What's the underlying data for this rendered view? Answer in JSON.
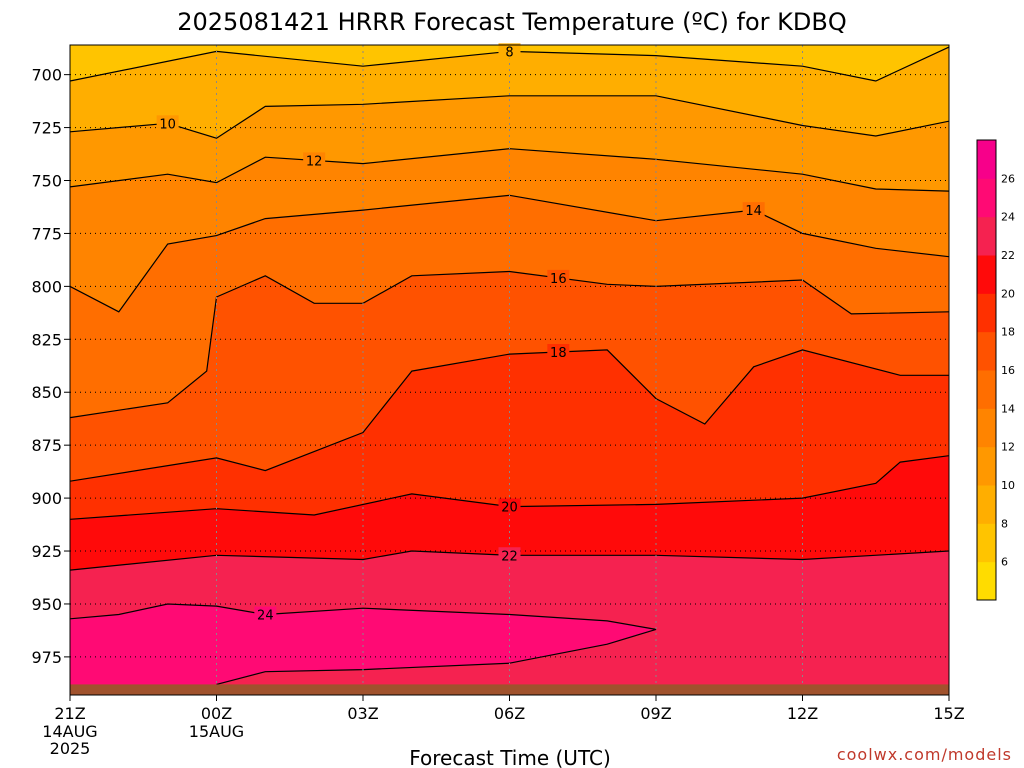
{
  "chart_data": {
    "type": "heatmap",
    "title": "2025081421 HRRR Forecast Temperature (ºC) for KDBQ",
    "xlabel": "Forecast Time (UTC)",
    "ylabel": "",
    "x_range_hours": [
      0,
      18
    ],
    "y_range_hPa": [
      686,
      993
    ],
    "x_ticks": [
      {
        "hour": 0,
        "label": "21Z",
        "date": [
          "14AUG",
          "2025"
        ]
      },
      {
        "hour": 3,
        "label": "00Z",
        "date": [
          "15AUG"
        ]
      },
      {
        "hour": 6,
        "label": "03Z",
        "date": []
      },
      {
        "hour": 9,
        "label": "06Z",
        "date": []
      },
      {
        "hour": 12,
        "label": "09Z",
        "date": []
      },
      {
        "hour": 15,
        "label": "12Z",
        "date": []
      },
      {
        "hour": 18,
        "label": "15Z",
        "date": []
      }
    ],
    "y_ticks": [
      {
        "p": 700,
        "label": "700"
      },
      {
        "p": 725,
        "label": "725"
      },
      {
        "p": 750,
        "label": "750"
      },
      {
        "p": 775,
        "label": "775"
      },
      {
        "p": 800,
        "label": "800"
      },
      {
        "p": 825,
        "label": "825"
      },
      {
        "p": 850,
        "label": "850"
      },
      {
        "p": 875,
        "label": "875"
      },
      {
        "p": 900,
        "label": "900"
      },
      {
        "p": 925,
        "label": "925"
      },
      {
        "p": 950,
        "label": "950"
      },
      {
        "p": 975,
        "label": "975"
      }
    ],
    "grid": true,
    "surface_color": "#a0522d",
    "surface_pressure_hPa": 988,
    "colorbar": {
      "levels": [
        4,
        6,
        8,
        10,
        12,
        14,
        16,
        18,
        20,
        22,
        24,
        26,
        28
      ],
      "colors": [
        "#ffdc00",
        "#ffc400",
        "#ffae00",
        "#ff9800",
        "#ff8400",
        "#ff6e00",
        "#ff5200",
        "#ff3000",
        "#ff0a0a",
        "#f52250",
        "#ff0a74",
        "#f7008a"
      ],
      "tick_labels": [
        "6",
        "8",
        "10",
        "12",
        "14",
        "16",
        "18",
        "20",
        "22",
        "24",
        "26"
      ]
    },
    "isotherms": [
      {
        "value": 8,
        "label": "8",
        "label_at_hour": 9,
        "points_hPa": [
          [
            0,
            703
          ],
          [
            3,
            689
          ],
          [
            6,
            696
          ],
          [
            9,
            689
          ],
          [
            12,
            691
          ],
          [
            15,
            696
          ],
          [
            16.5,
            703
          ],
          [
            18,
            687
          ]
        ]
      },
      {
        "value": 10,
        "label": "10",
        "label_at_hour": 2,
        "points_hPa": [
          [
            0,
            727
          ],
          [
            2,
            723
          ],
          [
            3,
            730
          ],
          [
            4,
            715
          ],
          [
            6,
            714
          ],
          [
            9,
            710
          ],
          [
            12,
            710
          ],
          [
            15,
            724
          ],
          [
            16.5,
            729
          ],
          [
            18,
            722
          ]
        ]
      },
      {
        "value": 12,
        "label": "12",
        "label_at_hour": 5,
        "points_hPa": [
          [
            0,
            753
          ],
          [
            2,
            747
          ],
          [
            3,
            751
          ],
          [
            4,
            739
          ],
          [
            6,
            742
          ],
          [
            9,
            735
          ],
          [
            12,
            740
          ],
          [
            15,
            747
          ],
          [
            16.5,
            754
          ],
          [
            18,
            755
          ]
        ]
      },
      {
        "value": 14,
        "label": "14",
        "label_at_hour": 14,
        "points_hPa": [
          [
            0,
            800
          ],
          [
            1,
            812
          ],
          [
            2,
            780
          ],
          [
            3,
            776
          ],
          [
            4,
            768
          ],
          [
            6,
            764
          ],
          [
            9,
            757
          ],
          [
            12,
            769
          ],
          [
            14,
            764
          ],
          [
            15,
            775
          ],
          [
            16.5,
            782
          ],
          [
            18,
            786
          ]
        ]
      },
      {
        "value": 16,
        "label": "16",
        "label_at_hour": 10,
        "points_hPa": [
          [
            0,
            862
          ],
          [
            2,
            855
          ],
          [
            2.8,
            840
          ],
          [
            3,
            805
          ],
          [
            4,
            795
          ],
          [
            5,
            808
          ],
          [
            6,
            808
          ],
          [
            7,
            795
          ],
          [
            9,
            793
          ],
          [
            11,
            799
          ],
          [
            12,
            800
          ],
          [
            15,
            797
          ],
          [
            16,
            813
          ],
          [
            18,
            812
          ]
        ]
      },
      {
        "value": 18,
        "label": "18",
        "label_at_hour": 10,
        "points_hPa": [
          [
            0,
            892
          ],
          [
            3,
            881
          ],
          [
            4,
            887
          ],
          [
            6,
            869
          ],
          [
            7,
            840
          ],
          [
            9,
            832
          ],
          [
            11,
            830
          ],
          [
            12,
            853
          ],
          [
            13,
            865
          ],
          [
            14,
            838
          ],
          [
            15,
            830
          ],
          [
            17,
            842
          ],
          [
            18,
            842
          ]
        ]
      },
      {
        "value": 20,
        "label": "20",
        "label_at_hour": 9,
        "points_hPa": [
          [
            0,
            910
          ],
          [
            3,
            905
          ],
          [
            5,
            908
          ],
          [
            7,
            898
          ],
          [
            9,
            904
          ],
          [
            12,
            903
          ],
          [
            15,
            900
          ],
          [
            16.5,
            893
          ],
          [
            17,
            883
          ],
          [
            18,
            880
          ]
        ]
      },
      {
        "value": 22,
        "label": "22",
        "label_at_hour": 9,
        "points_hPa": [
          [
            0,
            934
          ],
          [
            3,
            927
          ],
          [
            6,
            929
          ],
          [
            7,
            925
          ],
          [
            9,
            927
          ],
          [
            12,
            927
          ],
          [
            15,
            929
          ],
          [
            18,
            925
          ]
        ]
      },
      {
        "value": 24,
        "label": "24",
        "label_at_hour": 4,
        "points_hPa": [
          [
            0,
            957
          ],
          [
            1,
            955
          ],
          [
            2,
            950
          ],
          [
            3,
            951
          ],
          [
            4,
            955
          ],
          [
            6,
            952
          ],
          [
            9,
            955
          ],
          [
            11,
            958
          ],
          [
            12,
            962
          ],
          [
            11,
            969
          ],
          [
            9,
            978
          ],
          [
            6,
            981
          ],
          [
            4,
            982
          ],
          [
            3,
            988
          ]
        ]
      }
    ],
    "credit": "coolwx.com/models"
  }
}
